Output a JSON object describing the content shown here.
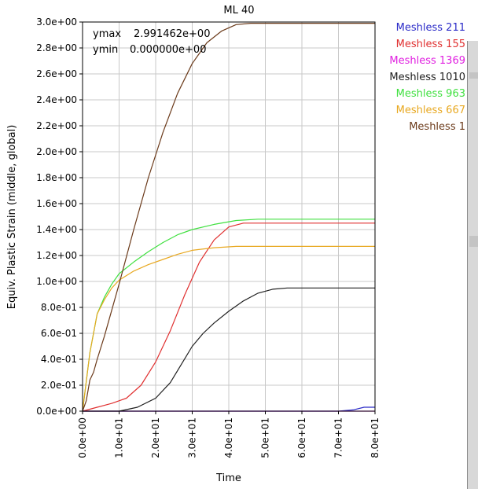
{
  "chart_data": {
    "type": "line",
    "title": "ML 40",
    "xlabel": "Time",
    "ylabel": "Equiv. Plastic Strain (middle, global)",
    "xlim": [
      0,
      80
    ],
    "ylim": [
      0,
      3.0
    ],
    "grid": true,
    "legend_position": "right, outside plot",
    "x_ticks": [
      0,
      10,
      20,
      30,
      40,
      50,
      60,
      70,
      80
    ],
    "x_tick_labels": [
      "0.0e+00",
      "1.0e+01",
      "2.0e+01",
      "3.0e+01",
      "4.0e+01",
      "5.0e+01",
      "6.0e+01",
      "7.0e+01",
      "8.0e+01"
    ],
    "y_ticks": [
      0,
      0.2,
      0.4,
      0.6,
      0.8,
      1.0,
      1.2,
      1.4,
      1.6,
      1.8,
      2.0,
      2.2,
      2.4,
      2.6,
      2.8,
      3.0
    ],
    "y_tick_labels": [
      "0.0e+00",
      "2.0e-01",
      "4.0e-01",
      "6.0e-01",
      "8.0e-01",
      "1.0e+00",
      "1.2e+00",
      "1.4e+00",
      "1.6e+00",
      "1.8e+00",
      "2.0e+00",
      "2.2e+00",
      "2.4e+00",
      "2.6e+00",
      "2.8e+00",
      "3.0e+00"
    ],
    "annotations": {
      "ymax_label": "ymax",
      "ymax_value": "2.991462e+00",
      "ymin_label": "ymin",
      "ymin_value": "0.000000e+00"
    },
    "series": [
      {
        "name": "Meshless 211",
        "color": "#2b2bc8",
        "x": [
          0,
          60,
          70,
          74,
          77,
          80
        ],
        "y": [
          0,
          0,
          0,
          0.01,
          0.03,
          0.03
        ]
      },
      {
        "name": "Meshless 155",
        "color": "#e03030",
        "x": [
          0,
          4,
          8,
          12,
          16,
          20,
          24,
          28,
          32,
          36,
          40,
          44,
          48,
          80
        ],
        "y": [
          0,
          0.03,
          0.06,
          0.1,
          0.2,
          0.38,
          0.62,
          0.9,
          1.15,
          1.32,
          1.42,
          1.45,
          1.45,
          1.45
        ]
      },
      {
        "name": "Meshless 1369",
        "color": "#e020e0",
        "x": [
          0,
          80
        ],
        "y": [
          0,
          0
        ]
      },
      {
        "name": "Meshless 1010",
        "color": "#202020",
        "x": [
          0,
          10,
          15,
          20,
          24,
          27,
          30,
          33,
          36,
          40,
          44,
          48,
          52,
          56,
          80
        ],
        "y": [
          0,
          0,
          0.03,
          0.1,
          0.22,
          0.36,
          0.5,
          0.6,
          0.68,
          0.77,
          0.85,
          0.91,
          0.94,
          0.95,
          0.95
        ]
      },
      {
        "name": "Meshless 963",
        "color": "#40e040",
        "x": [
          0,
          2,
          4,
          6,
          8,
          10,
          14,
          18,
          22,
          26,
          30,
          36,
          42,
          48,
          80
        ],
        "y": [
          0,
          0.45,
          0.75,
          0.88,
          0.98,
          1.06,
          1.15,
          1.23,
          1.3,
          1.36,
          1.4,
          1.44,
          1.47,
          1.48,
          1.48
        ]
      },
      {
        "name": "Meshless 667",
        "color": "#e8a820",
        "x": [
          0,
          2,
          4,
          6,
          8,
          10,
          14,
          18,
          22,
          26,
          30,
          36,
          42,
          48,
          80
        ],
        "y": [
          0,
          0.45,
          0.75,
          0.86,
          0.95,
          1.01,
          1.08,
          1.13,
          1.17,
          1.21,
          1.24,
          1.26,
          1.27,
          1.27,
          1.27
        ]
      },
      {
        "name": "Meshless 1",
        "color": "#6b3a1a",
        "x": [
          0,
          1,
          2,
          3,
          4,
          6,
          8,
          10,
          14,
          18,
          22,
          26,
          30,
          34,
          38,
          42,
          46,
          48,
          80
        ],
        "y": [
          0,
          0.08,
          0.24,
          0.3,
          0.4,
          0.58,
          0.78,
          0.98,
          1.4,
          1.8,
          2.15,
          2.45,
          2.68,
          2.84,
          2.93,
          2.98,
          2.99,
          2.99,
          2.99
        ]
      }
    ]
  }
}
